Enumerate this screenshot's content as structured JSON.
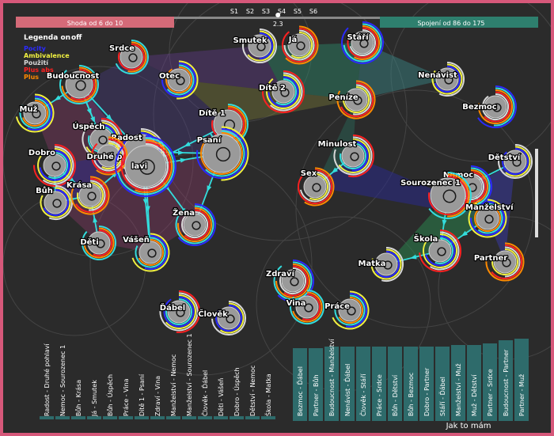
{
  "header": {
    "left_range_label": "Shoda od 6 do 10",
    "right_range_label": "Spojení od 86 do 175",
    "slider_steps": [
      "S1",
      "S2",
      "S3",
      "S4",
      "S5",
      "S6"
    ],
    "slider_value": "2.3",
    "slider_fraction": 0.62
  },
  "legend": {
    "title": "Legenda on",
    "off_label": "off",
    "items": [
      {
        "label": "Pocity",
        "color": "#2a2aff"
      },
      {
        "label": "Ambivalence",
        "color": "#f0f040"
      },
      {
        "label": "Použití",
        "color": "#d9d9d9"
      },
      {
        "label": "Plus abs",
        "color": "#ff2020"
      },
      {
        "label": "Plus",
        "color": "#ff8a00"
      }
    ]
  },
  "colors": {
    "frame": "#d6587a",
    "background": "#2b2b2b",
    "link": "#33dddd",
    "bar": "#2e6b6b",
    "left_bar_band": "#d46a78",
    "right_bar_band": "#2e7f6e",
    "node": "#a9a9a9"
  },
  "nodes": [
    {
      "id": "smutek",
      "label": "Smutek"
    },
    {
      "id": "ja",
      "label": "Já"
    },
    {
      "id": "stari",
      "label": "Stáří"
    },
    {
      "id": "srdce",
      "label": "Srdce"
    },
    {
      "id": "otec",
      "label": "Otec"
    },
    {
      "id": "dite2",
      "label": "Dítě 2"
    },
    {
      "id": "nenavist",
      "label": "Nenávist"
    },
    {
      "id": "penize",
      "label": "Peníze"
    },
    {
      "id": "bezmoc",
      "label": "Bezmoc"
    },
    {
      "id": "budoucnost",
      "label": "Budoucnost"
    },
    {
      "id": "muz",
      "label": "Muž"
    },
    {
      "id": "uspech",
      "label": "Úspěch"
    },
    {
      "id": "radost",
      "label": "Radost"
    },
    {
      "id": "druhe",
      "label": "Druhé p"
    },
    {
      "id": "ohlavi",
      "label": "lavi"
    },
    {
      "id": "dite1",
      "label": "Dítě 1"
    },
    {
      "id": "psani",
      "label": "Psaní"
    },
    {
      "id": "dobro",
      "label": "Dobro"
    },
    {
      "id": "buh",
      "label": "Bůh"
    },
    {
      "id": "krasa",
      "label": "Krása"
    },
    {
      "id": "zena",
      "label": "Žena"
    },
    {
      "id": "deti",
      "label": "Děti"
    },
    {
      "id": "vasen",
      "label": "Vášeň"
    },
    {
      "id": "minulost",
      "label": "Minulost"
    },
    {
      "id": "detstvi",
      "label": "Dětství"
    },
    {
      "id": "sex",
      "label": "Sex"
    },
    {
      "id": "nemoc",
      "label": "Nemoc"
    },
    {
      "id": "sourozenec",
      "label": "Sourozenec 1"
    },
    {
      "id": "manzelstvi",
      "label": "Manželství"
    },
    {
      "id": "skola",
      "label": "Škola"
    },
    {
      "id": "matka",
      "label": "Matka"
    },
    {
      "id": "partner",
      "label": "Partner"
    },
    {
      "id": "zdravi",
      "label": "Zdraví"
    },
    {
      "id": "vina",
      "label": "Vina"
    },
    {
      "id": "prace",
      "label": "Práce"
    },
    {
      "id": "dabel",
      "label": "Ďábel"
    },
    {
      "id": "clovek",
      "label": "Člověk"
    }
  ],
  "links": [
    [
      "budoucnost",
      "muz"
    ],
    [
      "budoucnost",
      "uspech"
    ],
    [
      "budoucnost",
      "radost"
    ],
    [
      "budoucnost",
      "druhe"
    ],
    [
      "uspech",
      "radost"
    ],
    [
      "radost",
      "psani"
    ],
    [
      "radost",
      "vasen"
    ],
    [
      "radost",
      "zena"
    ],
    [
      "radost",
      "krasa"
    ],
    [
      "druhe",
      "ohlavi"
    ],
    [
      "ohlavi",
      "vasen"
    ],
    [
      "ohlavi",
      "psani"
    ],
    [
      "dite1",
      "ohlavi"
    ],
    [
      "psani",
      "zena"
    ],
    [
      "dobro",
      "krasa"
    ],
    [
      "buh",
      "krasa"
    ],
    [
      "krasa",
      "radost"
    ],
    [
      "deti",
      "krasa"
    ],
    [
      "buh",
      "dobro"
    ],
    [
      "minulost",
      "sex"
    ],
    [
      "sourozenec",
      "nemoc"
    ],
    [
      "nemoc",
      "manzelstvi"
    ],
    [
      "manzelstvi",
      "skola"
    ],
    [
      "skola",
      "matka"
    ],
    [
      "detstvi",
      "sourozenec"
    ],
    [
      "sourozenec",
      "skola"
    ]
  ],
  "bars_left": {
    "labels": [
      "Radost - Druhé pohlaví",
      "Nemoc - Sourozenec 1",
      "Bůh - Krása",
      "Já - Smutek",
      "Bůh - Úspěch",
      "Práce - Vina",
      "Dítě 1 - Psaní",
      "Zdraví - Vina",
      "Manželství - Nemoc",
      "Manželství - Sourozenec 1",
      "Člověk - Ďábel",
      "Děti - Vášeň",
      "Dobro - Úspěch",
      "Dětství - Nemoc",
      "Škola - Matka"
    ],
    "values": [
      6,
      6,
      6,
      6,
      6,
      6,
      6,
      6,
      6,
      6,
      6,
      6,
      6,
      6,
      6
    ]
  },
  "bars_right": {
    "labels": [
      "Bezmoc - Ďábel",
      "Partner - Bůh",
      "Budoucnost - Manželství",
      "Nenávist - Ďábel",
      "Člověk - Stáří",
      "Práce - Srdce",
      "Bůh - Dětství",
      "Bůh - Bezmoc",
      "Dobro - Partner",
      "Stáří - Ďábel",
      "Manželství - Muž",
      "Muž - Dětství",
      "Partner - Srdce",
      "Budoucnost - Partner",
      "Partner - Muž"
    ],
    "values": [
      86,
      86,
      88,
      88,
      88,
      88,
      88,
      88,
      88,
      88,
      90,
      90,
      92,
      96,
      98
    ]
  },
  "footer": {
    "caption": "Jak to mám"
  }
}
